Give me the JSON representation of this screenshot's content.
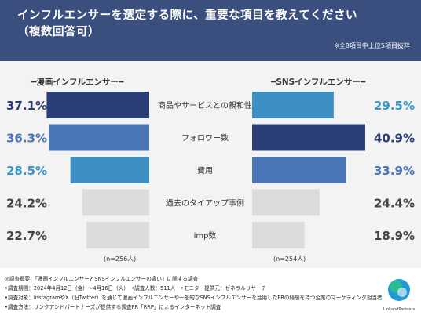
{
  "title_line1": "インフルエンサーを選定する際に、重要な項目を教えてください",
  "title_line2": "（複数回答可）",
  "title_note": "※全8項目中上位5項目抜粋",
  "chart_data": {
    "type": "bar",
    "title": "インフルエンサーを選定する際に、重要な項目を教えてください（複数回答可）",
    "categories": [
      "商品やサービスとの親和性",
      "フォロワー数",
      "費用",
      "過去のタイアップ事例",
      "imp数"
    ],
    "series": [
      {
        "name": "漫画インフルエンサー",
        "values": [
          37.1,
          36.3,
          28.5,
          24.2,
          22.7
        ],
        "n_label": "(n=256人)"
      },
      {
        "name": "SNSインフルエンサー",
        "values": [
          29.5,
          40.9,
          33.9,
          24.4,
          18.9
        ],
        "n_label": "(n=254人)"
      }
    ],
    "value_labels": {
      "left": [
        "37.1%",
        "36.3%",
        "28.5%",
        "24.2%",
        "22.7%"
      ],
      "right": [
        "29.5%",
        "40.9%",
        "33.9%",
        "24.4%",
        "18.9%"
      ]
    },
    "colors": {
      "rank1": "#2c3e78",
      "rank2": "#4a76b8",
      "rank3": "#3d8fc4",
      "other": "#dcdcdc",
      "label_rank1": "#2c3e78",
      "label_rank2": "#4a76b8",
      "label_rank3": "#3899c8",
      "label_other": "#444444"
    }
  },
  "series_labels": {
    "left": "━漫画インフルエンサー━",
    "right": "━SNSインフルエンサー━"
  },
  "footer": [
    "◎調査概要：「漫画インフルエンサーとSNSインフルエンサーの違い」に関する調査",
    "•調査期間：2024年4月12日（金）〜4月16日（火）　•調査人数：511人　•モニター提供元：ゼネラルリサーチ",
    "•調査対象：InstagramやX（旧Twitter）を通じて漫画インフルエンサーや一般的なSNSインフルエンサーを活用したPRの経験を持つ企業のマーケティング担当者",
    "•調査方法：リンクアンドパートナーズが提供する調査PR「RRP」によるインターネット調査"
  ],
  "logo_text": "LinkandPartners"
}
